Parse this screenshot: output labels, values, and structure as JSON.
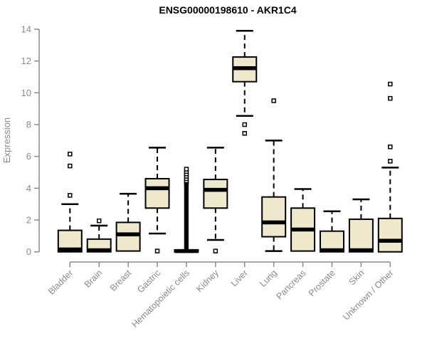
{
  "chart_data": {
    "type": "boxplot",
    "title": "ENSG00000198610 - AKR1C4",
    "ylabel": "Expression",
    "xlabel": "",
    "ylim": [
      0,
      14
    ],
    "yticks": [
      0,
      2,
      4,
      6,
      8,
      10,
      12,
      14
    ],
    "grid": false,
    "legend": "none",
    "colors": {
      "box_fill": "#EEE8CD",
      "box_stroke": "#000000",
      "median": "#000000",
      "whisker": "#000000",
      "outlier_stroke": "#000000",
      "axis": "#8a8a8a",
      "tick_label": "#8a8a8a",
      "title": "#000000",
      "background": "#ffffff"
    },
    "categories": [
      "Bladder",
      "Brain",
      "Breast",
      "Gastric",
      "Hematopoietic cells",
      "Kidney",
      "Liver",
      "Lung",
      "Pancreas",
      "Prostate",
      "Skin",
      "Unknown / Other"
    ],
    "series": [
      {
        "category": "Bladder",
        "whisker_low": 0,
        "q1": 0,
        "median": 0.15,
        "q3": 1.35,
        "whisker_high": 3.0,
        "outliers": [
          3.55,
          5.4,
          6.15
        ]
      },
      {
        "category": "Brain",
        "whisker_low": 0,
        "q1": 0,
        "median": 0.1,
        "q3": 0.8,
        "whisker_high": 1.65,
        "outliers": [
          1.95
        ]
      },
      {
        "category": "Breast",
        "whisker_low": 0.05,
        "q1": 0.05,
        "median": 1.1,
        "q3": 1.85,
        "whisker_high": 3.65,
        "outliers": []
      },
      {
        "category": "Gastric",
        "whisker_low": 1.15,
        "q1": 2.75,
        "median": 4.0,
        "q3": 4.6,
        "whisker_high": 6.55,
        "outliers": [
          0.05
        ]
      },
      {
        "category": "Hematopoietic cells",
        "whisker_low": 0,
        "q1": 0,
        "median": 0.05,
        "q3": 0.12,
        "whisker_high": 0.12,
        "outliers": [
          4.3,
          4.45,
          4.6,
          4.75,
          4.9,
          5.05,
          5.2
        ],
        "outlier_column": {
          "min": 0.15,
          "max": 4.25,
          "step": 0.05
        }
      },
      {
        "category": "Kidney",
        "whisker_low": 0.75,
        "q1": 2.75,
        "median": 3.9,
        "q3": 4.55,
        "whisker_high": 6.55,
        "outliers": [
          0.05
        ]
      },
      {
        "category": "Liver",
        "whisker_low": 8.55,
        "q1": 10.7,
        "median": 11.55,
        "q3": 12.25,
        "whisker_high": 13.9,
        "outliers": [
          7.45,
          8.0
        ]
      },
      {
        "category": "Lung",
        "whisker_low": 0.05,
        "q1": 0.95,
        "median": 1.85,
        "q3": 3.45,
        "whisker_high": 7.0,
        "outliers": [
          9.5
        ]
      },
      {
        "category": "Pancreas",
        "whisker_low": 0.05,
        "q1": 0.05,
        "median": 1.4,
        "q3": 2.75,
        "whisker_high": 3.95,
        "outliers": []
      },
      {
        "category": "Prostate",
        "whisker_low": 0,
        "q1": 0,
        "median": 0.1,
        "q3": 1.3,
        "whisker_high": 2.55,
        "outliers": []
      },
      {
        "category": "Skin",
        "whisker_low": 0,
        "q1": 0,
        "median": 0.1,
        "q3": 2.05,
        "whisker_high": 3.3,
        "outliers": []
      },
      {
        "category": "Unknown / Other",
        "whisker_low": 0,
        "q1": 0,
        "median": 0.7,
        "q3": 2.1,
        "whisker_high": 5.3,
        "outliers": [
          5.7,
          6.6,
          9.65,
          10.55
        ]
      }
    ]
  }
}
